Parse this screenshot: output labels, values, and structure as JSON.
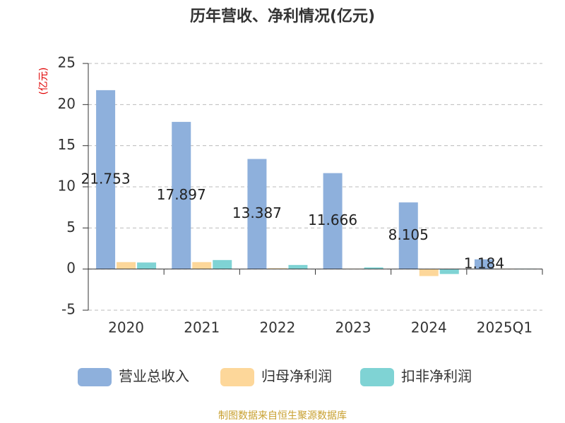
{
  "chart_data": {
    "type": "bar",
    "title": "历年营收、净利情况(亿元)",
    "y_label": "(亿元)",
    "categories": [
      "2020",
      "2021",
      "2022",
      "2023",
      "2024",
      "2025Q1"
    ],
    "series": [
      {
        "name": "营业总收入",
        "color": "#8eb0dc",
        "values": [
          21.753,
          17.897,
          13.387,
          11.666,
          8.105,
          1.184
        ],
        "show_labels": true
      },
      {
        "name": "归母净利润",
        "color": "#fdd79a",
        "values": [
          0.85,
          0.85,
          0.1,
          0.05,
          -0.85,
          0.05
        ]
      },
      {
        "name": "扣非净利润",
        "color": "#7fd3d4",
        "values": [
          0.8,
          1.1,
          0.5,
          0.2,
          -0.6,
          0.05
        ]
      }
    ],
    "ylim": [
      -5,
      25
    ],
    "yticks": [
      -5,
      0,
      5,
      10,
      15,
      20,
      25
    ],
    "grid": true,
    "source": "制图数据来自恒生聚源数据库"
  }
}
